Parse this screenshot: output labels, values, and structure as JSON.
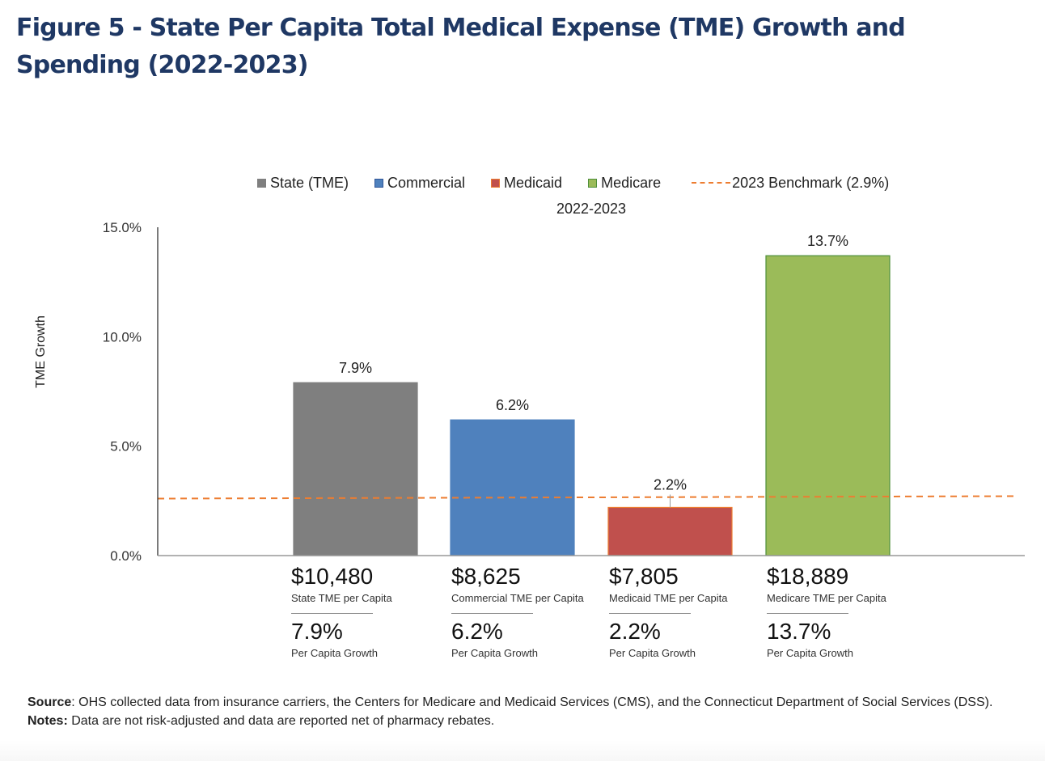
{
  "figure": {
    "title": "Figure 5 - State Per Capita Total Medical Expense (TME) Growth and Spending (2022-2023)"
  },
  "chart_data": {
    "type": "bar",
    "title": "Figure 5 - State Per Capita Total Medical Expense (TME) Growth and Spending (2022-2023)",
    "subtitle": "2022-2023",
    "xlabel": "",
    "ylabel": "TME Growth",
    "ylim": [
      0,
      15
    ],
    "yticks": [
      0,
      5,
      10,
      15
    ],
    "ytick_labels": [
      "0.0%",
      "5.0%",
      "10.0%",
      "15.0%"
    ],
    "grid": false,
    "legend_position": "top",
    "categories": [
      "State (TME)",
      "Commercial",
      "Medicaid",
      "Medicare"
    ],
    "values": [
      7.9,
      6.2,
      2.2,
      13.7
    ],
    "value_labels": [
      "7.9%",
      "6.2%",
      "2.2%",
      "13.7%"
    ],
    "colors": [
      "#7f7f7f",
      "#4f81bd",
      "#c0504d",
      "#9bbb59"
    ],
    "border_colors": [
      "#7f7f7f",
      "#4f81bd",
      "#ed7d31",
      "#4e8f3a"
    ],
    "benchmark": {
      "label": "2023 Benchmark (2.9%)",
      "value": 2.9,
      "color": "#ed7d31",
      "style": "dashed"
    },
    "legend": [
      {
        "label": "State (TME)",
        "color": "#7f7f7f",
        "border": "#7f7f7f"
      },
      {
        "label": "Commercial",
        "color": "#4f81bd",
        "border": "#2f5597"
      },
      {
        "label": "Medicaid",
        "color": "#c0504d",
        "border": "#ed7d31"
      },
      {
        "label": "Medicare",
        "color": "#9bbb59",
        "border": "#4e8f3a"
      }
    ]
  },
  "summaries": [
    {
      "amount": "$10,480",
      "caption": "State TME per Capita",
      "growth": "7.9%",
      "growth_caption": "Per Capita Growth"
    },
    {
      "amount": "$8,625",
      "caption": "Commercial TME per Capita",
      "growth": "6.2%",
      "growth_caption": "Per Capita Growth"
    },
    {
      "amount": "$7,805",
      "caption": "Medicaid TME per Capita",
      "growth": "2.2%",
      "growth_caption": "Per Capita Growth"
    },
    {
      "amount": "$18,889",
      "caption": "Medicare TME per Capita",
      "growth": "13.7%",
      "growth_caption": "Per Capita Growth"
    }
  ],
  "footnotes": {
    "source_label": "Source",
    "source_text": ": OHS collected data from insurance carriers, the Centers for Medicare and Medicaid Services (CMS), and the Connecticut Department of Social Services (DSS).",
    "notes_label": "Notes:",
    "notes_text": " Data are not risk-adjusted and data are reported net of pharmacy rebates."
  }
}
